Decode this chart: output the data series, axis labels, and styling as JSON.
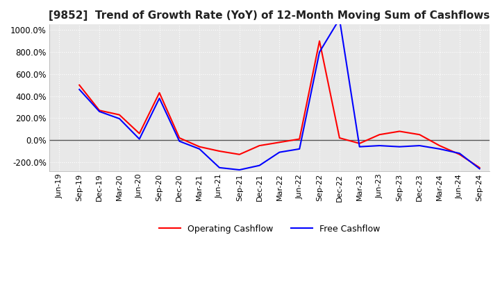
{
  "title": "[9852]  Trend of Growth Rate (YoY) of 12-Month Moving Sum of Cashflows",
  "title_fontsize": 11,
  "ylim": [
    -280,
    1050
  ],
  "yticks": [
    -200,
    0,
    200,
    400,
    600,
    800,
    1000
  ],
  "ytick_labels": [
    "-200.0%",
    "0.0%",
    "200.0%",
    "400.0%",
    "600.0%",
    "800.0%",
    "1000.0%"
  ],
  "background_color": "#ffffff",
  "plot_bg_color": "#e8e8e8",
  "grid_color": "#ffffff",
  "operating_color": "#ff0000",
  "free_color": "#0000ff",
  "legend_labels": [
    "Operating Cashflow",
    "Free Cashflow"
  ],
  "x_dates": [
    "Jun-19",
    "Sep-19",
    "Dec-19",
    "Mar-20",
    "Jun-20",
    "Sep-20",
    "Dec-20",
    "Mar-21",
    "Jun-21",
    "Sep-21",
    "Dec-21",
    "Mar-22",
    "Jun-22",
    "Sep-22",
    "Dec-22",
    "Mar-23",
    "Jun-23",
    "Sep-23",
    "Dec-23",
    "Mar-24",
    "Jun-24",
    "Sep-24"
  ],
  "operating_cashflow": [
    null,
    500,
    270,
    230,
    60,
    430,
    20,
    -60,
    -100,
    -130,
    -50,
    -20,
    10,
    900,
    20,
    -30,
    50,
    80,
    50,
    -50,
    -130,
    -250
  ],
  "free_cashflow": [
    null,
    460,
    260,
    195,
    10,
    380,
    -10,
    -80,
    -250,
    -270,
    -230,
    -110,
    -80,
    800,
    1100,
    -60,
    -50,
    -60,
    -50,
    -80,
    -120,
    -260
  ],
  "xtick_labels": [
    "Jun-19",
    "Sep-19",
    "Dec-19",
    "Mar-20",
    "Jun-20",
    "Sep-20",
    "Dec-20",
    "Mar-21",
    "Jun-21",
    "Sep-21",
    "Dec-21",
    "Mar-22",
    "Jun-22",
    "Sep-22",
    "Dec-22",
    "Mar-23",
    "Jun-23",
    "Sep-23",
    "Dec-23",
    "Mar-24",
    "Jun-24",
    "Sep-24"
  ]
}
